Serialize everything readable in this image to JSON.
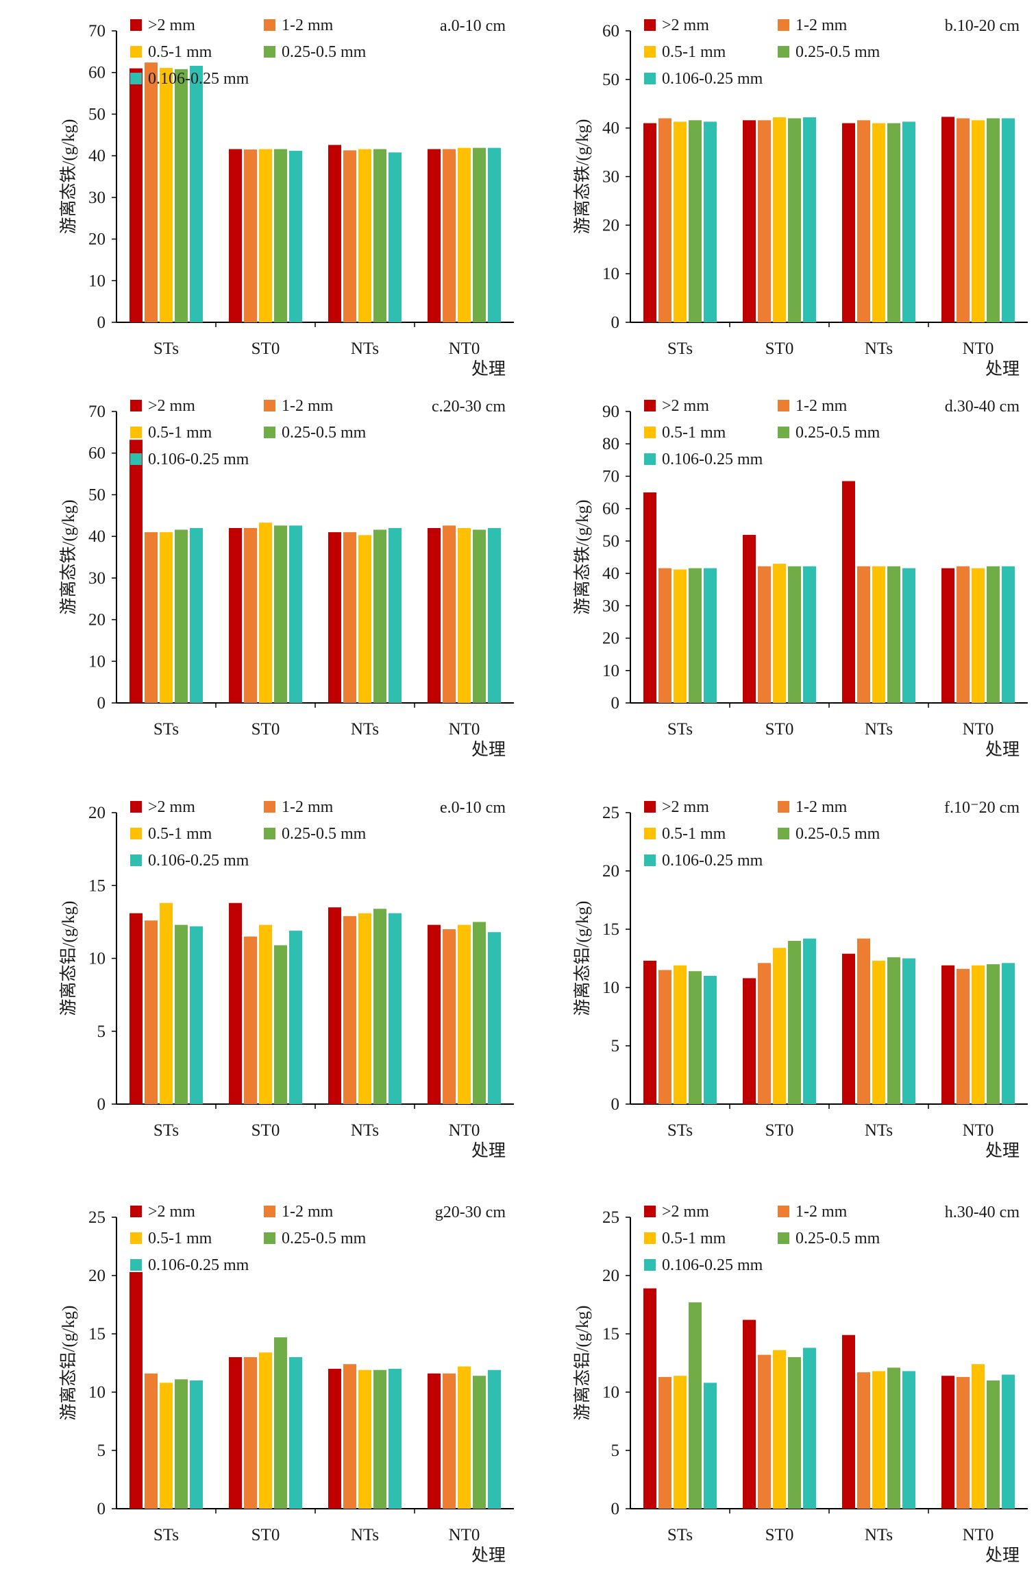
{
  "colors": [
    "#c00000",
    "#ed7d31",
    "#ffc000",
    "#70ad47",
    "#2fbfb0"
  ],
  "chart_data": [
    {
      "type": "bar",
      "title": "a.0-10 cm",
      "xlabel": "处理",
      "ylabel": "游离态铁/(g/kg)",
      "categories": [
        "STs",
        "ST0",
        "NTs",
        "NT0"
      ],
      "ylim": [
        0,
        70
      ],
      "yticks": [
        "0",
        "10",
        "20",
        "30",
        "40",
        "50",
        "60",
        "70"
      ],
      "series": [
        {
          "name": ">2 mm",
          "values": [
            61.0,
            41.6,
            42.6,
            41.6
          ]
        },
        {
          "name": "1-2 mm",
          "values": [
            62.4,
            41.5,
            41.3,
            41.6
          ]
        },
        {
          "name": "0.5-1 mm",
          "values": [
            61.1,
            41.6,
            41.6,
            41.9
          ]
        },
        {
          "name": "0.25-0.5 mm",
          "values": [
            60.8,
            41.6,
            41.6,
            41.9
          ]
        },
        {
          "name": "0.106-0.25 mm",
          "values": [
            61.6,
            41.2,
            40.8,
            41.9
          ]
        }
      ]
    },
    {
      "type": "bar",
      "title": "b.10-20 cm",
      "xlabel": "处理",
      "ylabel": "游离态铁/(g/kg)",
      "categories": [
        "STs",
        "ST0",
        "NTs",
        "NT0"
      ],
      "ylim": [
        0,
        60
      ],
      "yticks": [
        "0",
        "10",
        "20",
        "30",
        "40",
        "50",
        "60"
      ],
      "series": [
        {
          "name": ">2 mm",
          "values": [
            41.0,
            41.6,
            41.0,
            42.3
          ]
        },
        {
          "name": "1-2 mm",
          "values": [
            42.0,
            41.6,
            41.6,
            42.0
          ]
        },
        {
          "name": "0.5-1 mm",
          "values": [
            41.3,
            42.2,
            41.0,
            41.6
          ]
        },
        {
          "name": "0.25-0.5 mm",
          "values": [
            41.6,
            42.0,
            41.0,
            42.0
          ]
        },
        {
          "name": "0.106-0.25 mm",
          "values": [
            41.3,
            42.2,
            41.3,
            42.0
          ]
        }
      ]
    },
    {
      "type": "bar",
      "title": "c.20-30 cm",
      "xlabel": "处理",
      "ylabel": "游离态铁/(g/kg)",
      "categories": [
        "STs",
        "ST0",
        "NTs",
        "NT0"
      ],
      "ylim": [
        0,
        70
      ],
      "yticks": [
        "0",
        "10",
        "20",
        "30",
        "40",
        "50",
        "60",
        "70"
      ],
      "series": [
        {
          "name": ">2 mm",
          "values": [
            63.2,
            42.0,
            41.0,
            42.0
          ]
        },
        {
          "name": "1-2 mm",
          "values": [
            41.0,
            42.0,
            41.0,
            42.6
          ]
        },
        {
          "name": "0.5-1 mm",
          "values": [
            41.0,
            43.3,
            40.3,
            42.0
          ]
        },
        {
          "name": "0.25-0.5 mm",
          "values": [
            41.6,
            42.6,
            41.6,
            41.6
          ]
        },
        {
          "name": "0.106-0.25 mm",
          "values": [
            42.0,
            42.6,
            42.0,
            42.0
          ]
        }
      ]
    },
    {
      "type": "bar",
      "title": "d.30-40 cm",
      "xlabel": "处理",
      "ylabel": "游离态铁/(g/kg)",
      "categories": [
        "STs",
        "ST0",
        "NTs",
        "NT0"
      ],
      "ylim": [
        0,
        90
      ],
      "yticks": [
        "0",
        "10",
        "20",
        "30",
        "40",
        "50",
        "60",
        "70",
        "80",
        "90"
      ],
      "series": [
        {
          "name": ">2 mm",
          "values": [
            65.0,
            51.9,
            68.5,
            41.6
          ]
        },
        {
          "name": "1-2 mm",
          "values": [
            41.6,
            42.2,
            42.2,
            42.2
          ]
        },
        {
          "name": "0.5-1 mm",
          "values": [
            41.2,
            43.0,
            42.2,
            41.6
          ]
        },
        {
          "name": "0.25-0.5 mm",
          "values": [
            41.6,
            42.2,
            42.2,
            42.2
          ]
        },
        {
          "name": "0.106-0.25 mm",
          "values": [
            41.6,
            42.2,
            41.6,
            42.2
          ]
        }
      ]
    },
    {
      "type": "bar",
      "title": "e.0-10 cm",
      "xlabel": "处理",
      "ylabel": "游离态铝/(g/kg)",
      "categories": [
        "STs",
        "ST0",
        "NTs",
        "NT0"
      ],
      "ylim": [
        0,
        20
      ],
      "yticks": [
        "0",
        "5",
        "10",
        "15",
        "20"
      ],
      "series": [
        {
          "name": ">2 mm",
          "values": [
            13.1,
            13.8,
            13.5,
            12.3
          ]
        },
        {
          "name": "1-2 mm",
          "values": [
            12.6,
            11.5,
            12.9,
            12.0
          ]
        },
        {
          "name": "0.5-1 mm",
          "values": [
            13.8,
            12.3,
            13.1,
            12.3
          ]
        },
        {
          "name": "0.25-0.5 mm",
          "values": [
            12.3,
            10.9,
            13.4,
            12.5
          ]
        },
        {
          "name": "0.106-0.25 mm",
          "values": [
            12.2,
            11.9,
            13.1,
            11.8
          ]
        }
      ]
    },
    {
      "type": "bar",
      "title": "f.10⁻20 cm",
      "xlabel": "处理",
      "ylabel": "游离态铝/(g/kg)",
      "categories": [
        "STs",
        "ST0",
        "NTs",
        "NT0"
      ],
      "ylim": [
        0,
        25
      ],
      "yticks": [
        "0",
        "5",
        "10",
        "15",
        "20",
        "25"
      ],
      "series": [
        {
          "name": ">2 mm",
          "values": [
            12.3,
            10.8,
            12.9,
            11.9
          ]
        },
        {
          "name": "1-2 mm",
          "values": [
            11.5,
            12.1,
            14.2,
            11.6
          ]
        },
        {
          "name": "0.5-1 mm",
          "values": [
            11.9,
            13.4,
            12.3,
            11.9
          ]
        },
        {
          "name": "0.25-0.5 mm",
          "values": [
            11.4,
            14.0,
            12.6,
            12.0
          ]
        },
        {
          "name": "0.106-0.25 mm",
          "values": [
            11.0,
            14.2,
            12.5,
            12.1
          ]
        }
      ]
    },
    {
      "type": "bar",
      "title": "g20-30 cm",
      "xlabel": "处理",
      "ylabel": "游离态铝/(g/kg)",
      "categories": [
        "STs",
        "ST0",
        "NTs",
        "NT0"
      ],
      "ylim": [
        0,
        25
      ],
      "yticks": [
        "0",
        "5",
        "10",
        "15",
        "20",
        "25"
      ],
      "series": [
        {
          "name": ">2 mm",
          "values": [
            20.3,
            13.0,
            12.0,
            11.6
          ]
        },
        {
          "name": "1-2 mm",
          "values": [
            11.6,
            13.0,
            12.4,
            11.6
          ]
        },
        {
          "name": "0.5-1 mm",
          "values": [
            10.8,
            13.4,
            11.9,
            12.2
          ]
        },
        {
          "name": "0.25-0.5 mm",
          "values": [
            11.1,
            14.7,
            11.9,
            11.4
          ]
        },
        {
          "name": "0.106-0.25 mm",
          "values": [
            11.0,
            13.0,
            12.0,
            11.9
          ]
        }
      ]
    },
    {
      "type": "bar",
      "title": "h.30-40 cm",
      "xlabel": "处理",
      "ylabel": "游离态铝/(g/kg)",
      "categories": [
        "STs",
        "ST0",
        "NTs",
        "NT0"
      ],
      "ylim": [
        0,
        25
      ],
      "yticks": [
        "0",
        "5",
        "10",
        "15",
        "20",
        "25"
      ],
      "series": [
        {
          "name": ">2 mm",
          "values": [
            18.9,
            16.2,
            14.9,
            11.4
          ]
        },
        {
          "name": "1-2 mm",
          "values": [
            11.3,
            13.2,
            11.7,
            11.3
          ]
        },
        {
          "name": "0.5-1 mm",
          "values": [
            11.4,
            13.6,
            11.8,
            12.4
          ]
        },
        {
          "name": "0.25-0.5 mm",
          "values": [
            17.7,
            13.0,
            12.1,
            11.0
          ]
        },
        {
          "name": "0.106-0.25 mm",
          "values": [
            10.8,
            13.8,
            11.8,
            11.5
          ]
        }
      ]
    }
  ]
}
